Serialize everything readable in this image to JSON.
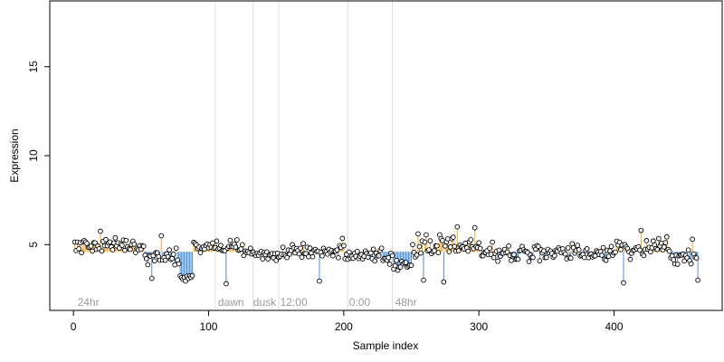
{
  "chart_data": {
    "type": "scatter",
    "title": "",
    "xlabel": "Sample index",
    "ylabel": "Expression",
    "xlim": [
      -17.5,
      480
    ],
    "ylim": [
      1.3,
      18.7
    ],
    "x_ticks": [
      0,
      100,
      200,
      300,
      400
    ],
    "y_ticks": [
      5,
      10,
      15
    ],
    "baseline": 4.6,
    "grid": false,
    "legend": "none",
    "colors": {
      "above": "#f5a623",
      "below": "#4a90d9",
      "point_fill": "#ffffff",
      "point_stroke": "#000000",
      "phase_line": "#dddddd",
      "phase_label": "#9a9a9a"
    },
    "phase_boundaries": [
      105,
      133,
      152,
      203,
      236
    ],
    "phase_labels": [
      {
        "label": "24hr",
        "x": 3
      },
      {
        "label": "dawn",
        "x": 107
      },
      {
        "label": "dusk",
        "x": 133
      },
      {
        "label": "12:00",
        "x": 153
      },
      {
        "label": "0:00",
        "x": 204
      },
      {
        "label": "48hr",
        "x": 238
      }
    ],
    "segments": [
      {
        "x0": 1,
        "x1": 52,
        "mean": 4.95,
        "sd": 0.3
      },
      {
        "x0": 53,
        "x1": 78,
        "mean": 4.3,
        "sd": 0.35
      },
      {
        "x0": 79,
        "x1": 88,
        "mean": 3.2,
        "sd": 0.15
      },
      {
        "x0": 89,
        "x1": 125,
        "mean": 4.9,
        "sd": 0.25
      },
      {
        "x0": 126,
        "x1": 160,
        "mean": 4.45,
        "sd": 0.25
      },
      {
        "x0": 161,
        "x1": 200,
        "mean": 4.65,
        "sd": 0.35
      },
      {
        "x0": 201,
        "x1": 236,
        "mean": 4.3,
        "sd": 0.3
      },
      {
        "x0": 237,
        "x1": 250,
        "mean": 3.9,
        "sd": 0.2
      },
      {
        "x0": 251,
        "x1": 300,
        "mean": 4.9,
        "sd": 0.45
      },
      {
        "x0": 301,
        "x1": 400,
        "mean": 4.55,
        "sd": 0.35
      },
      {
        "x0": 401,
        "x1": 440,
        "mean": 4.85,
        "sd": 0.4
      },
      {
        "x0": 441,
        "x1": 462,
        "mean": 4.3,
        "sd": 0.35
      }
    ],
    "extremes": [
      {
        "x": 20,
        "y": 5.75
      },
      {
        "x": 58,
        "y": 3.1
      },
      {
        "x": 65,
        "y": 5.5
      },
      {
        "x": 81,
        "y": 3.05
      },
      {
        "x": 83,
        "y": 2.95
      },
      {
        "x": 85,
        "y": 3.1
      },
      {
        "x": 113,
        "y": 2.8
      },
      {
        "x": 182,
        "y": 2.95
      },
      {
        "x": 255,
        "y": 5.6
      },
      {
        "x": 259,
        "y": 3.0
      },
      {
        "x": 261,
        "y": 5.55
      },
      {
        "x": 274,
        "y": 2.9
      },
      {
        "x": 284,
        "y": 6.0
      },
      {
        "x": 297,
        "y": 5.95
      },
      {
        "x": 407,
        "y": 2.85
      },
      {
        "x": 420,
        "y": 5.8
      },
      {
        "x": 458,
        "y": 5.3
      },
      {
        "x": 462,
        "y": 3.0
      }
    ],
    "n_points": 462
  }
}
